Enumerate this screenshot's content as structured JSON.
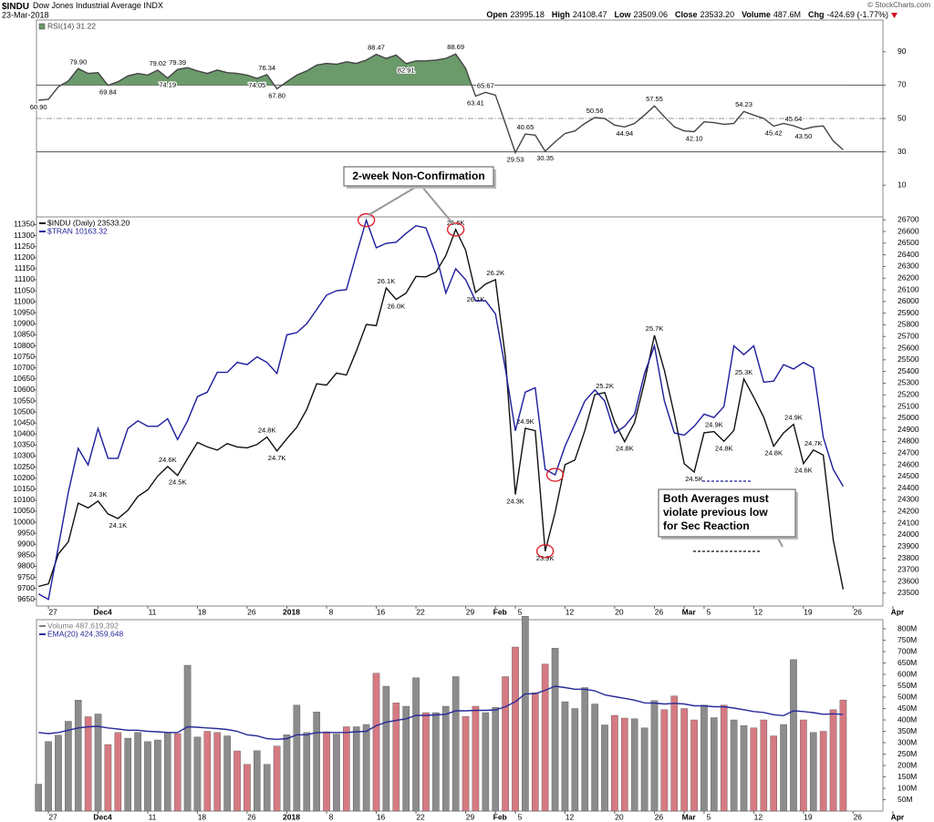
{
  "header": {
    "title": "$INDU",
    "subtitle": "Dow Jones Industrial Average INDX",
    "date": "23-Mar-2018",
    "source": "© StockCharts.com",
    "quote": [
      {
        "label": "Open",
        "value": "23995.18"
      },
      {
        "label": "High",
        "value": "24108.47"
      },
      {
        "label": "Low",
        "value": "23509.06"
      },
      {
        "label": "Close",
        "value": "23533.20"
      },
      {
        "label": "Volume",
        "value": "487.6M"
      },
      {
        "label": "Chg",
        "value": "-424.69 (-1.77%)"
      }
    ]
  },
  "chart_data": [
    {
      "type": "line",
      "y_axis": "right",
      "xlim": [
        -0.2,
        85
      ],
      "ylim": [
        -9,
        109
      ],
      "yticks": [
        10,
        30,
        50,
        70,
        90
      ],
      "levels": {
        "upper": 70,
        "middle": 50,
        "lower": 30
      },
      "series": [
        {
          "name": "RSI(14) 31.22",
          "color": "#444444",
          "fill": "#6b9a6b",
          "values": [
            60.9,
            61.5,
            69,
            72.5,
            79.9,
            77,
            77.5,
            69.84,
            72,
            75.5,
            77,
            76,
            79.02,
            74.19,
            79.39,
            80.5,
            78.5,
            77,
            79,
            77.5,
            77,
            76,
            74.05,
            76.34,
            67.8,
            72,
            76,
            78.5,
            82,
            83,
            82.5,
            84,
            83,
            85,
            88.47,
            86,
            88,
            82.91,
            84.5,
            84.5,
            85,
            86,
            88.69,
            80,
            63.41,
            65.67,
            64,
            47,
            29.53,
            40.65,
            40,
            30.35,
            36,
            41,
            42.5,
            47,
            50.56,
            50,
            46,
            44.94,
            47,
            52,
            57.55,
            51,
            45,
            42.5,
            42.1,
            48,
            47.5,
            46.5,
            47,
            54.23,
            52,
            50,
            45.42,
            47,
            45.64,
            43.5,
            45,
            45.5,
            36.5,
            31.22
          ],
          "value_labels": [
            "60.90",
            null,
            null,
            null,
            "79.90",
            null,
            null,
            "69.84",
            null,
            null,
            null,
            null,
            "79.02",
            "74.19",
            "79.39",
            null,
            null,
            null,
            null,
            null,
            null,
            null,
            "74.05",
            "76.34",
            "67.80",
            null,
            null,
            null,
            null,
            null,
            null,
            null,
            null,
            null,
            "88.47",
            null,
            null,
            "82.91",
            null,
            null,
            null,
            null,
            "88.69",
            null,
            "63.41",
            "65.67",
            null,
            null,
            "29.53",
            "40.65",
            null,
            "30.35",
            null,
            null,
            null,
            null,
            "50.56",
            null,
            null,
            "44.94",
            null,
            null,
            "57.55",
            null,
            null,
            null,
            "42.10",
            null,
            null,
            null,
            null,
            "54.23",
            null,
            null,
            "45.42",
            null,
            "45.64",
            "43.50",
            null,
            null,
            null,
            null
          ]
        }
      ]
    },
    {
      "type": "line",
      "y_axis": "left",
      "xlim": [
        -0.2,
        85
      ],
      "ylim": [
        9620,
        11385
      ],
      "yticks": [
        9650,
        9700,
        9750,
        9800,
        9850,
        9900,
        9950,
        10000,
        10050,
        10100,
        10150,
        10200,
        10250,
        10300,
        10350,
        10400,
        10450,
        10500,
        10550,
        10600,
        10650,
        10700,
        10750,
        10800,
        10850,
        10900,
        10950,
        11000,
        11050,
        11100,
        11150,
        11200,
        11250,
        11300,
        11350
      ],
      "y2lim": [
        23390,
        26725
      ],
      "y2ticks": [
        23500,
        23600,
        23700,
        23800,
        23900,
        24000,
        24100,
        24200,
        24300,
        24400,
        24500,
        24600,
        24700,
        24800,
        24900,
        25000,
        25100,
        25200,
        25300,
        25400,
        25500,
        25600,
        25700,
        25800,
        25900,
        26000,
        26100,
        26200,
        26300,
        26400,
        26500,
        26600,
        26700
      ],
      "xticks": [
        {
          "value": 1,
          "label": "27"
        },
        {
          "value": 6,
          "label": "Dec4"
        },
        {
          "value": 11,
          "label": "11"
        },
        {
          "value": 16,
          "label": "18"
        },
        {
          "value": 21,
          "label": "26"
        },
        {
          "value": 25,
          "label": "2018"
        },
        {
          "value": 29,
          "label": "8"
        },
        {
          "value": 34,
          "label": "16"
        },
        {
          "value": 38,
          "label": "22"
        },
        {
          "value": 43,
          "label": "29"
        },
        {
          "value": 46,
          "label": "Feb"
        },
        {
          "value": 48,
          "label": "5"
        },
        {
          "value": 53,
          "label": "12"
        },
        {
          "value": 58,
          "label": "20"
        },
        {
          "value": 62,
          "label": "26"
        },
        {
          "value": 65,
          "label": "Mar"
        },
        {
          "value": 67,
          "label": "5"
        },
        {
          "value": 72,
          "label": "12"
        },
        {
          "value": 77,
          "label": "19"
        },
        {
          "value": 82,
          "label": "26"
        },
        {
          "value": 86,
          "label": "Apr"
        }
      ],
      "series": [
        {
          "name": "$INDU (Daily) 23533.20",
          "color": "#111111",
          "axis": "y2",
          "values": [
            23558,
            23580,
            23836,
            23940,
            24272,
            24231,
            24290,
            24180,
            24140,
            24211,
            24329,
            24386,
            24504,
            24585,
            24509,
            24652,
            24792,
            24754,
            24726,
            24782,
            24754,
            24746,
            24774,
            24838,
            24719,
            24824,
            24922,
            25075,
            25295,
            25283,
            25386,
            25370,
            25575,
            25803,
            25793,
            26116,
            26017,
            26072,
            26215,
            26211,
            26252,
            26393,
            26617,
            26439,
            26077,
            26149,
            26187,
            25521,
            24346,
            24913,
            24893,
            23860,
            24191,
            24601,
            24641,
            24893,
            25201,
            25219,
            24965,
            24798,
            24963,
            25310,
            25710,
            25410,
            25029,
            24609,
            24538,
            24875,
            24885,
            24801,
            24895,
            25336,
            25179,
            25008,
            24759,
            24874,
            24947,
            24611,
            24727,
            24683,
            23958,
            23533.2
          ],
          "value_labels": [
            null,
            null,
            null,
            null,
            null,
            null,
            "24.3K",
            null,
            "24.1K",
            null,
            null,
            null,
            null,
            "24.6K",
            "24.5K",
            null,
            null,
            null,
            null,
            null,
            null,
            null,
            null,
            "24.8K",
            "24.7K",
            null,
            null,
            null,
            null,
            null,
            null,
            null,
            null,
            null,
            null,
            "26.1K",
            "26.0K",
            null,
            null,
            null,
            null,
            null,
            "26.6K",
            null,
            "26.1K",
            null,
            "26.2K",
            null,
            "24.3K",
            "24.9K",
            null,
            "23.9K",
            null,
            null,
            null,
            null,
            null,
            "25.2K",
            null,
            "24.8K",
            null,
            null,
            "25.7K",
            null,
            null,
            null,
            "24.5K",
            null,
            "24.9K",
            "24.8K",
            null,
            "25.3K",
            null,
            null,
            "24.8K",
            null,
            "24.9K",
            "24.6K",
            "24.7K",
            null,
            null,
            null
          ]
        },
        {
          "name": "$TRAN 10163.32",
          "color": "#1c1c9c",
          "values": [
            9675,
            9650,
            9890,
            10135,
            10335,
            10260,
            10425,
            10290,
            10290,
            10425,
            10460,
            10435,
            10435,
            10470,
            10375,
            10460,
            10570,
            10590,
            10680,
            10680,
            10725,
            10715,
            10750,
            10725,
            10675,
            10850,
            10860,
            10900,
            10965,
            11030,
            11050,
            11055,
            11215,
            11370,
            11245,
            11265,
            11270,
            11310,
            11345,
            11335,
            11215,
            11040,
            11150,
            11100,
            11005,
            11005,
            10945,
            10695,
            10415,
            10590,
            10610,
            10240,
            10215,
            10345,
            10445,
            10550,
            10600,
            10550,
            10405,
            10435,
            10490,
            10675,
            10800,
            10550,
            10405,
            10395,
            10435,
            10490,
            10475,
            10525,
            10800,
            10760,
            10800,
            10635,
            10640,
            10715,
            10695,
            10725,
            10700,
            10385,
            10240,
            10163.32
          ]
        }
      ],
      "annotations": [
        {
          "text": "2-week Non-Confirmation"
        },
        {
          "lines": [
            "Both Averages must",
            "violate previous low",
            "for Sec Reaction"
          ]
        }
      ]
    },
    {
      "type": "bar",
      "y_axis": "right",
      "xlim": [
        -0.2,
        85
      ],
      "ylim": [
        0,
        840
      ],
      "yticks": [
        {
          "value": 50,
          "label": "50M"
        },
        {
          "value": 100,
          "label": "100M"
        },
        {
          "value": 150,
          "label": "150M"
        },
        {
          "value": 200,
          "label": "200M"
        },
        {
          "value": 250,
          "label": "250M"
        },
        {
          "value": 300,
          "label": "300M"
        },
        {
          "value": 350,
          "label": "350M"
        },
        {
          "value": 400,
          "label": "400M"
        },
        {
          "value": 450,
          "label": "450M"
        },
        {
          "value": 500,
          "label": "500M"
        },
        {
          "value": 550,
          "label": "550M"
        },
        {
          "value": 600,
          "label": "600M"
        },
        {
          "value": 650,
          "label": "650M"
        },
        {
          "value": 700,
          "label": "700M"
        },
        {
          "value": 750,
          "label": "750M"
        },
        {
          "value": 800,
          "label": "800M"
        }
      ],
      "xticks": [
        {
          "value": 1,
          "label": "27"
        },
        {
          "value": 6,
          "label": "Dec4"
        },
        {
          "value": 11,
          "label": "11"
        },
        {
          "value": 16,
          "label": "18"
        },
        {
          "value": 21,
          "label": "26"
        },
        {
          "value": 25,
          "label": "2018"
        },
        {
          "value": 29,
          "label": "8"
        },
        {
          "value": 34,
          "label": "16"
        },
        {
          "value": 38,
          "label": "22"
        },
        {
          "value": 43,
          "label": "29"
        },
        {
          "value": 46,
          "label": "Feb"
        },
        {
          "value": 48,
          "label": "5"
        },
        {
          "value": 53,
          "label": "12"
        },
        {
          "value": 58,
          "label": "20"
        },
        {
          "value": 62,
          "label": "26"
        },
        {
          "value": 65,
          "label": "Mar"
        },
        {
          "value": 67,
          "label": "5"
        },
        {
          "value": 72,
          "label": "12"
        },
        {
          "value": 77,
          "label": "19"
        },
        {
          "value": 82,
          "label": "26"
        },
        {
          "value": 86,
          "label": "Apr"
        }
      ],
      "series": [
        {
          "name": "Volume 487,619,392",
          "color": "#808080",
          "up_color": "#8c8c8c",
          "down_color": "#d67a82",
          "values": [
            118,
            305,
            333,
            394,
            487,
            414,
            426,
            292,
            345,
            320,
            345,
            305,
            312,
            345,
            340,
            640,
            325,
            350,
            345,
            330,
            264,
            205,
            265,
            205,
            285,
            335,
            465,
            345,
            435,
            348,
            338,
            370,
            370,
            380,
            605,
            548,
            475,
            460,
            585,
            432,
            432,
            460,
            590,
            415,
            460,
            432,
            455,
            590,
            720,
            855,
            520,
            645,
            715,
            480,
            450,
            542,
            470,
            378,
            420,
            408,
            405,
            365,
            485,
            445,
            505,
            450,
            400,
            465,
            410,
            465,
            400,
            375,
            365,
            400,
            330,
            380,
            665,
            400,
            345,
            350,
            445,
            487.62
          ]
        },
        {
          "name": "EMA(20) 424,359,648",
          "type": "line",
          "color": "#2a2a9a",
          "values": [
            345,
            340,
            345,
            355,
            365,
            370,
            372,
            365,
            360,
            355,
            355,
            350,
            348,
            345,
            345,
            370,
            368,
            365,
            362,
            358,
            350,
            335,
            330,
            318,
            315,
            318,
            335,
            335,
            345,
            345,
            345,
            345,
            348,
            350,
            375,
            390,
            398,
            405,
            420,
            420,
            422,
            425,
            440,
            440,
            442,
            442,
            444,
            458,
            480,
            515,
            515,
            530,
            548,
            542,
            535,
            535,
            528,
            510,
            502,
            495,
            487,
            475,
            474,
            470,
            473,
            470,
            462,
            462,
            458,
            458,
            452,
            445,
            437,
            433,
            423,
            419,
            440,
            437,
            432,
            425,
            427,
            424.36
          ]
        }
      ]
    }
  ]
}
